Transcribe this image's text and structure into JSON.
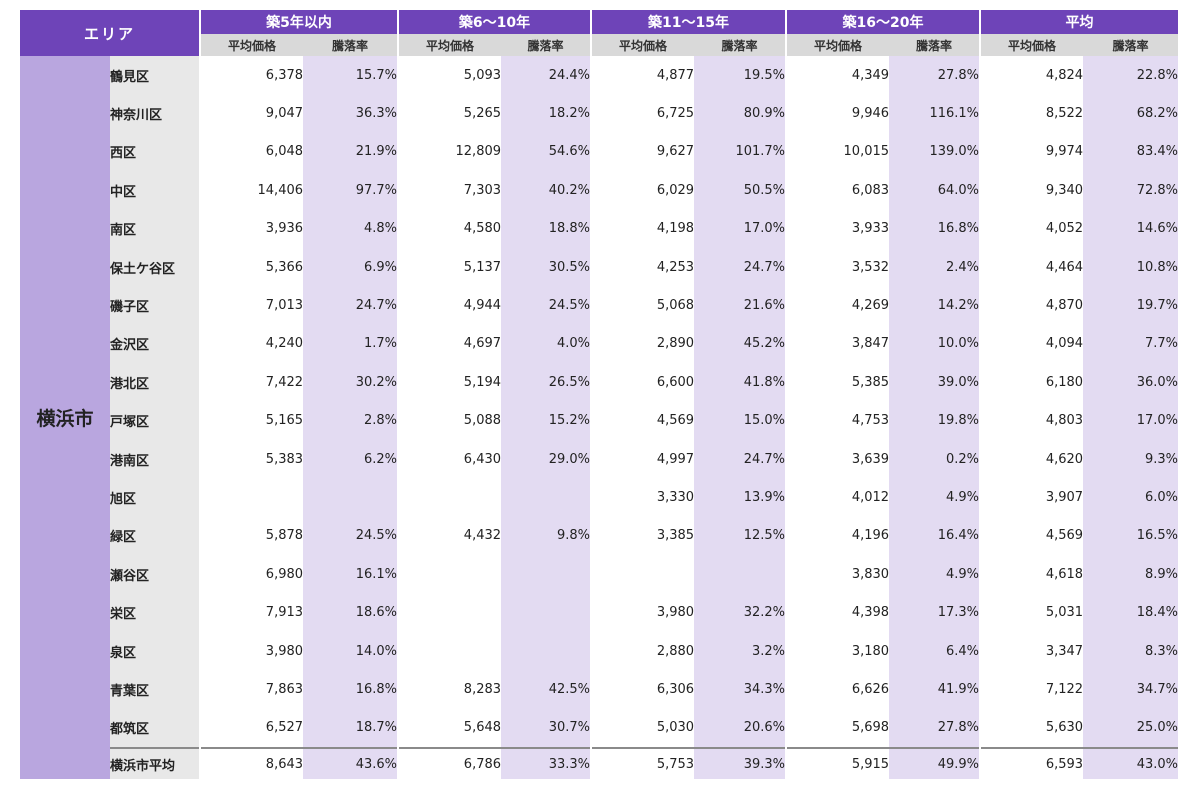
{
  "header": {
    "area_label": "エリア",
    "groups": [
      "築5年以内",
      "築6〜10年",
      "築11〜15年",
      "築16〜20年",
      "平均"
    ],
    "price_label": "平均価格",
    "rate_label": "騰落率"
  },
  "city": "横浜市",
  "rows": [
    {
      "ward": "鶴見区",
      "cells": [
        [
          "6,378",
          "15.7%"
        ],
        [
          "5,093",
          "24.4%"
        ],
        [
          "4,877",
          "19.5%"
        ],
        [
          "4,349",
          "27.8%"
        ],
        [
          "4,824",
          "22.8%"
        ]
      ]
    },
    {
      "ward": "神奈川区",
      "cells": [
        [
          "9,047",
          "36.3%"
        ],
        [
          "5,265",
          "18.2%"
        ],
        [
          "6,725",
          "80.9%"
        ],
        [
          "9,946",
          "116.1%"
        ],
        [
          "8,522",
          "68.2%"
        ]
      ]
    },
    {
      "ward": "西区",
      "cells": [
        [
          "6,048",
          "21.9%"
        ],
        [
          "12,809",
          "54.6%"
        ],
        [
          "9,627",
          "101.7%"
        ],
        [
          "10,015",
          "139.0%"
        ],
        [
          "9,974",
          "83.4%"
        ]
      ]
    },
    {
      "ward": "中区",
      "cells": [
        [
          "14,406",
          "97.7%"
        ],
        [
          "7,303",
          "40.2%"
        ],
        [
          "6,029",
          "50.5%"
        ],
        [
          "6,083",
          "64.0%"
        ],
        [
          "9,340",
          "72.8%"
        ]
      ]
    },
    {
      "ward": "南区",
      "cells": [
        [
          "3,936",
          "4.8%"
        ],
        [
          "4,580",
          "18.8%"
        ],
        [
          "4,198",
          "17.0%"
        ],
        [
          "3,933",
          "16.8%"
        ],
        [
          "4,052",
          "14.6%"
        ]
      ]
    },
    {
      "ward": "保土ケ谷区",
      "cells": [
        [
          "5,366",
          "6.9%"
        ],
        [
          "5,137",
          "30.5%"
        ],
        [
          "4,253",
          "24.7%"
        ],
        [
          "3,532",
          "2.4%"
        ],
        [
          "4,464",
          "10.8%"
        ]
      ]
    },
    {
      "ward": "磯子区",
      "cells": [
        [
          "7,013",
          "24.7%"
        ],
        [
          "4,944",
          "24.5%"
        ],
        [
          "5,068",
          "21.6%"
        ],
        [
          "4,269",
          "14.2%"
        ],
        [
          "4,870",
          "19.7%"
        ]
      ]
    },
    {
      "ward": "金沢区",
      "cells": [
        [
          "4,240",
          "1.7%"
        ],
        [
          "4,697",
          "4.0%"
        ],
        [
          "2,890",
          "45.2%"
        ],
        [
          "3,847",
          "10.0%"
        ],
        [
          "4,094",
          "7.7%"
        ]
      ]
    },
    {
      "ward": "港北区",
      "cells": [
        [
          "7,422",
          "30.2%"
        ],
        [
          "5,194",
          "26.5%"
        ],
        [
          "6,600",
          "41.8%"
        ],
        [
          "5,385",
          "39.0%"
        ],
        [
          "6,180",
          "36.0%"
        ]
      ]
    },
    {
      "ward": "戸塚区",
      "cells": [
        [
          "5,165",
          "2.8%"
        ],
        [
          "5,088",
          "15.2%"
        ],
        [
          "4,569",
          "15.0%"
        ],
        [
          "4,753",
          "19.8%"
        ],
        [
          "4,803",
          "17.0%"
        ]
      ]
    },
    {
      "ward": "港南区",
      "cells": [
        [
          "5,383",
          "6.2%"
        ],
        [
          "6,430",
          "29.0%"
        ],
        [
          "4,997",
          "24.7%"
        ],
        [
          "3,639",
          "0.2%"
        ],
        [
          "4,620",
          "9.3%"
        ]
      ]
    },
    {
      "ward": "旭区",
      "cells": [
        [
          "",
          ""
        ],
        [
          "",
          ""
        ],
        [
          "3,330",
          "13.9%"
        ],
        [
          "4,012",
          "4.9%"
        ],
        [
          "3,907",
          "6.0%"
        ]
      ]
    },
    {
      "ward": "緑区",
      "cells": [
        [
          "5,878",
          "24.5%"
        ],
        [
          "4,432",
          "9.8%"
        ],
        [
          "3,385",
          "12.5%"
        ],
        [
          "4,196",
          "16.4%"
        ],
        [
          "4,569",
          "16.5%"
        ]
      ]
    },
    {
      "ward": "瀬谷区",
      "cells": [
        [
          "6,980",
          "16.1%"
        ],
        [
          "",
          ""
        ],
        [
          "",
          ""
        ],
        [
          "3,830",
          "4.9%"
        ],
        [
          "4,618",
          "8.9%"
        ]
      ]
    },
    {
      "ward": "栄区",
      "cells": [
        [
          "7,913",
          "18.6%"
        ],
        [
          "",
          ""
        ],
        [
          "3,980",
          "32.2%"
        ],
        [
          "4,398",
          "17.3%"
        ],
        [
          "5,031",
          "18.4%"
        ]
      ]
    },
    {
      "ward": "泉区",
      "cells": [
        [
          "3,980",
          "14.0%"
        ],
        [
          "",
          ""
        ],
        [
          "2,880",
          "3.2%"
        ],
        [
          "3,180",
          "6.4%"
        ],
        [
          "3,347",
          "8.3%"
        ]
      ]
    },
    {
      "ward": "青葉区",
      "cells": [
        [
          "7,863",
          "16.8%"
        ],
        [
          "8,283",
          "42.5%"
        ],
        [
          "6,306",
          "34.3%"
        ],
        [
          "6,626",
          "41.9%"
        ],
        [
          "7,122",
          "34.7%"
        ]
      ]
    },
    {
      "ward": "都筑区",
      "cells": [
        [
          "6,527",
          "18.7%"
        ],
        [
          "5,648",
          "30.7%"
        ],
        [
          "5,030",
          "20.6%"
        ],
        [
          "5,698",
          "27.8%"
        ],
        [
          "5,630",
          "25.0%"
        ]
      ]
    }
  ],
  "average_row": {
    "ward": "横浜市平均",
    "cells": [
      [
        "8,643",
        "43.6%"
      ],
      [
        "6,786",
        "33.3%"
      ],
      [
        "5,753",
        "39.3%"
      ],
      [
        "5,915",
        "49.9%"
      ],
      [
        "6,593",
        "43.0%"
      ]
    ]
  },
  "colors": {
    "header_purple": "#6e44b8",
    "city_purple": "#b9a6df",
    "rate_column": "#e3dbf2",
    "sub_header_gray": "#d9d9d9",
    "ward_gray": "#e8e8e8"
  }
}
